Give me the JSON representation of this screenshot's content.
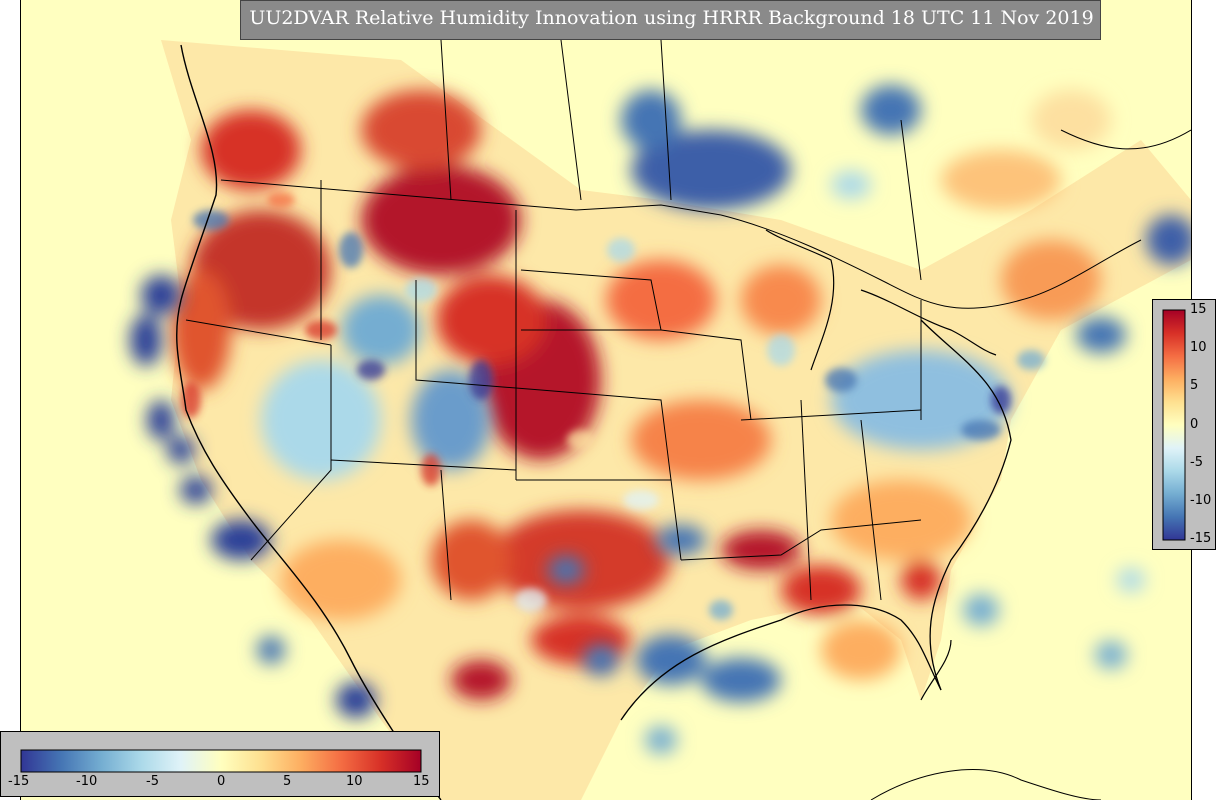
{
  "title": "UU2DVAR Relative Humidity Innovation using HRRR Background 18 UTC 11 Nov 2019",
  "colorbar": {
    "min": -15,
    "max": 15,
    "horizontal_ticks": [
      "-15",
      "-10",
      "-5",
      "0",
      "5",
      "10",
      "15"
    ],
    "vertical_ticks": [
      "15",
      "10",
      "5",
      "0",
      "-5",
      "-10",
      "-15"
    ],
    "colors": [
      "#313695",
      "#4575b4",
      "#74add1",
      "#abd9e9",
      "#e0f3f8",
      "#ffffbf",
      "#fee090",
      "#fdae61",
      "#f46d43",
      "#d73027",
      "#a50026"
    ]
  },
  "map": {
    "background_color": "#ffffc0",
    "boundary_color": "#000000"
  }
}
